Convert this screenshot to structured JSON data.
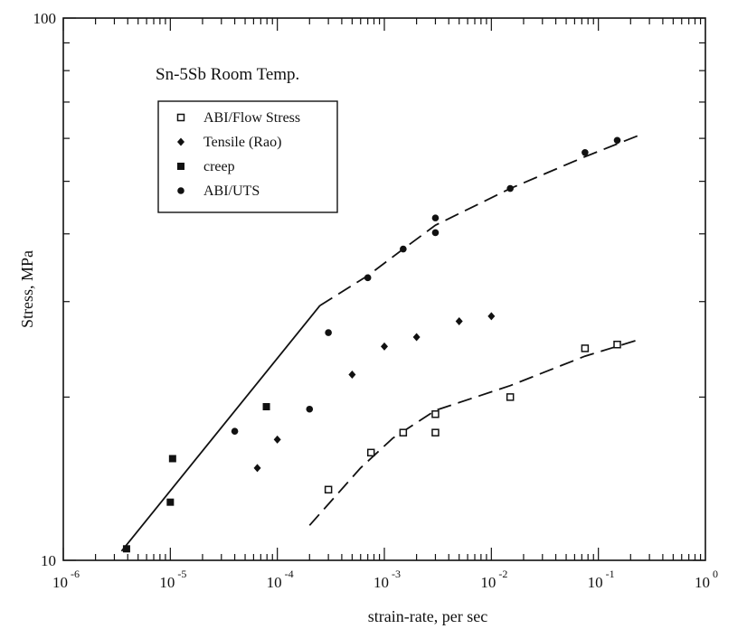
{
  "chart_data": {
    "type": "scatter",
    "title": "Sn-5Sb Room Temp.",
    "xlabel": "strain-rate, per sec",
    "ylabel": "Stress, MPa",
    "x_scale": "log",
    "y_scale": "log",
    "xlim": [
      1e-06,
      1
    ],
    "ylim": [
      10,
      100
    ],
    "x_ticks": [
      {
        "value": 1e-06,
        "base": "10",
        "exp": "-6"
      },
      {
        "value": 1e-05,
        "base": "10",
        "exp": "-5"
      },
      {
        "value": 0.0001,
        "base": "10",
        "exp": "-4"
      },
      {
        "value": 0.001,
        "base": "10",
        "exp": "-3"
      },
      {
        "value": 0.01,
        "base": "10",
        "exp": "-2"
      },
      {
        "value": 0.1,
        "base": "10",
        "exp": "-1"
      },
      {
        "value": 1,
        "base": "10",
        "exp": "0"
      }
    ],
    "y_ticks": [
      {
        "value": 10,
        "label": "10"
      },
      {
        "value": 100,
        "label": "100"
      }
    ],
    "legend_position": "top-left",
    "grid": false,
    "series": [
      {
        "name": "ABI/Flow Stress",
        "marker": "open-square",
        "points": [
          [
            0.0003,
            13.5
          ],
          [
            0.00075,
            15.8
          ],
          [
            0.0015,
            17.2
          ],
          [
            0.003,
            18.6
          ],
          [
            0.003,
            17.2
          ],
          [
            0.015,
            20.0
          ],
          [
            0.075,
            24.6
          ],
          [
            0.15,
            25.0
          ]
        ]
      },
      {
        "name": "Tensile (Rao)",
        "marker": "diamond",
        "points": [
          [
            6.5e-05,
            14.8
          ],
          [
            0.0001,
            16.7
          ],
          [
            0.0005,
            22.0
          ],
          [
            0.001,
            24.8
          ],
          [
            0.002,
            25.8
          ],
          [
            0.005,
            27.6
          ],
          [
            0.01,
            28.2
          ]
        ]
      },
      {
        "name": "creep",
        "marker": "filled-square",
        "points": [
          [
            3.9e-06,
            10.5
          ],
          [
            1e-05,
            12.8
          ],
          [
            1.05e-05,
            15.4
          ],
          [
            7.9e-05,
            19.2
          ]
        ]
      },
      {
        "name": "ABI/UTS",
        "marker": "filled-circle",
        "points": [
          [
            4e-05,
            17.3
          ],
          [
            0.0002,
            19.0
          ],
          [
            0.0003,
            26.3
          ],
          [
            0.0007,
            33.2
          ],
          [
            0.0015,
            37.5
          ],
          [
            0.003,
            40.2
          ],
          [
            0.003,
            42.8
          ],
          [
            0.015,
            48.5
          ],
          [
            0.075,
            56.5
          ],
          [
            0.15,
            59.5
          ]
        ]
      }
    ],
    "fit_lines": [
      {
        "style": "solid",
        "points": [
          [
            3.5e-06,
            10.4
          ],
          [
            0.00025,
            29.5
          ]
        ]
      },
      {
        "style": "dashed",
        "points": [
          [
            0.00025,
            29.5
          ],
          [
            0.0007,
            33.5
          ],
          [
            0.0015,
            37.5
          ],
          [
            0.003,
            41.5
          ],
          [
            0.015,
            48.5
          ],
          [
            0.075,
            55.5
          ],
          [
            0.25,
            61.0
          ]
        ]
      },
      {
        "style": "dashed",
        "points": [
          [
            0.0002,
            11.6
          ],
          [
            0.0006,
            14.8
          ],
          [
            0.0012,
            16.8
          ],
          [
            0.003,
            18.9
          ],
          [
            0.015,
            21.0
          ],
          [
            0.075,
            23.8
          ],
          [
            0.25,
            25.6
          ]
        ]
      }
    ]
  }
}
